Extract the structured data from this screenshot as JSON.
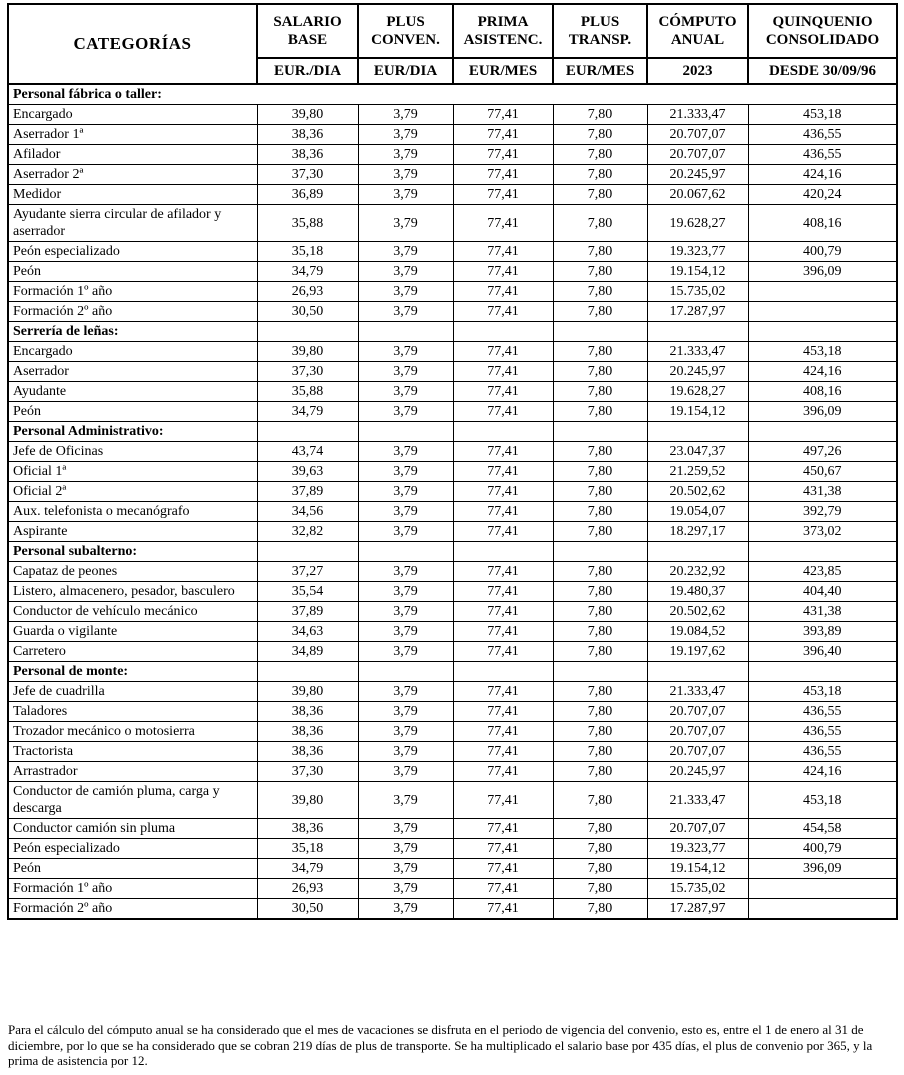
{
  "table": {
    "header": {
      "columns": [
        {
          "label": "CATEGORÍAS",
          "unit": ""
        },
        {
          "label": "SALARIO BASE",
          "unit": "EUR./DIA"
        },
        {
          "label": "PLUS CONVEN.",
          "unit": "EUR/DIA"
        },
        {
          "label": "PRIMA ASISTENC.",
          "unit": "EUR/MES"
        },
        {
          "label": "PLUS TRANSP.",
          "unit": "EUR/MES"
        },
        {
          "label": "CÓMPUTO ANUAL",
          "unit": "2023"
        },
        {
          "label": "QUINQUENIO CONSOLIDADO",
          "unit": "DESDE 30/09/96"
        }
      ]
    },
    "sections": [
      {
        "title": "Personal fábrica o taller:",
        "span_all": true,
        "rows": [
          {
            "categoria": "Encargado",
            "valores": [
              "39,80",
              "3,79",
              "77,41",
              "7,80",
              "21.333,47",
              "453,18"
            ]
          },
          {
            "categoria": "Aserrador 1ª",
            "valores": [
              "38,36",
              "3,79",
              "77,41",
              "7,80",
              "20.707,07",
              "436,55"
            ]
          },
          {
            "categoria": "Afilador",
            "valores": [
              "38,36",
              "3,79",
              "77,41",
              "7,80",
              "20.707,07",
              "436,55"
            ]
          },
          {
            "categoria": "Aserrador 2ª",
            "valores": [
              "37,30",
              "3,79",
              "77,41",
              "7,80",
              "20.245,97",
              "424,16"
            ]
          },
          {
            "categoria": "Medidor",
            "valores": [
              "36,89",
              "3,79",
              "77,41",
              "7,80",
              "20.067,62",
              "420,24"
            ]
          },
          {
            "categoria": "Ayudante sierra circular de afilador y aserrador",
            "valores": [
              "35,88",
              "3,79",
              "77,41",
              "7,80",
              "19.628,27",
              "408,16"
            ]
          },
          {
            "categoria": "Peón especializado",
            "valores": [
              "35,18",
              "3,79",
              "77,41",
              "7,80",
              "19.323,77",
              "400,79"
            ]
          },
          {
            "categoria": "Peón",
            "valores": [
              "34,79",
              "3,79",
              "77,41",
              "7,80",
              "19.154,12",
              "396,09"
            ]
          },
          {
            "categoria": "Formación 1º año",
            "valores": [
              "26,93",
              "3,79",
              "77,41",
              "7,80",
              "15.735,02",
              ""
            ]
          },
          {
            "categoria": "Formación 2º año",
            "valores": [
              "30,50",
              "3,79",
              "77,41",
              "7,80",
              "17.287,97",
              ""
            ]
          }
        ]
      },
      {
        "title": "Serrería de leñas:",
        "span_all": false,
        "rows": [
          {
            "categoria": "Encargado",
            "valores": [
              "39,80",
              "3,79",
              "77,41",
              "7,80",
              "21.333,47",
              "453,18"
            ]
          },
          {
            "categoria": "Aserrador",
            "valores": [
              "37,30",
              "3,79",
              "77,41",
              "7,80",
              "20.245,97",
              "424,16"
            ]
          },
          {
            "categoria": "Ayudante",
            "valores": [
              "35,88",
              "3,79",
              "77,41",
              "7,80",
              "19.628,27",
              "408,16"
            ]
          },
          {
            "categoria": "Peón",
            "valores": [
              "34,79",
              "3,79",
              "77,41",
              "7,80",
              "19.154,12",
              "396,09"
            ]
          }
        ]
      },
      {
        "title": "Personal Administrativo:",
        "span_all": false,
        "rows": [
          {
            "categoria": "Jefe de Oficinas",
            "valores": [
              "43,74",
              "3,79",
              "77,41",
              "7,80",
              "23.047,37",
              "497,26"
            ]
          },
          {
            "categoria": "Oficial 1ª",
            "valores": [
              "39,63",
              "3,79",
              "77,41",
              "7,80",
              "21.259,52",
              "450,67"
            ]
          },
          {
            "categoria": "Oficial 2ª",
            "valores": [
              "37,89",
              "3,79",
              "77,41",
              "7,80",
              "20.502,62",
              "431,38"
            ]
          },
          {
            "categoria": "Aux. telefonista o mecanógrafo",
            "valores": [
              "34,56",
              "3,79",
              "77,41",
              "7,80",
              "19.054,07",
              "392,79"
            ]
          },
          {
            "categoria": "Aspirante",
            "valores": [
              "32,82",
              "3,79",
              "77,41",
              "7,80",
              "18.297,17",
              "373,02"
            ]
          }
        ]
      },
      {
        "title": "Personal subalterno:",
        "span_all": false,
        "rows": [
          {
            "categoria": "Capataz de peones",
            "valores": [
              "37,27",
              "3,79",
              "77,41",
              "7,80",
              "20.232,92",
              "423,85"
            ]
          },
          {
            "categoria": "Listero, almacenero, pesador, basculero",
            "valores": [
              "35,54",
              "3,79",
              "77,41",
              "7,80",
              "19.480,37",
              "404,40"
            ]
          },
          {
            "categoria": "Conductor de vehículo mecánico",
            "valores": [
              "37,89",
              "3,79",
              "77,41",
              "7,80",
              "20.502,62",
              "431,38"
            ]
          },
          {
            "categoria": "Guarda o vigilante",
            "valores": [
              "34,63",
              "3,79",
              "77,41",
              "7,80",
              "19.084,52",
              "393,89"
            ]
          },
          {
            "categoria": "Carretero",
            "valores": [
              "34,89",
              "3,79",
              "77,41",
              "7,80",
              "19.197,62",
              "396,40"
            ]
          }
        ]
      },
      {
        "title": "Personal de monte:",
        "span_all": false,
        "rows": [
          {
            "categoria": "Jefe de cuadrilla",
            "valores": [
              "39,80",
              "3,79",
              "77,41",
              "7,80",
              "21.333,47",
              "453,18"
            ]
          },
          {
            "categoria": "Taladores",
            "valores": [
              "38,36",
              "3,79",
              "77,41",
              "7,80",
              "20.707,07",
              "436,55"
            ]
          },
          {
            "categoria": "Trozador mecánico o motosierra",
            "valores": [
              "38,36",
              "3,79",
              "77,41",
              "7,80",
              "20.707,07",
              "436,55"
            ]
          },
          {
            "categoria": "Tractorista",
            "valores": [
              "38,36",
              "3,79",
              "77,41",
              "7,80",
              "20.707,07",
              "436,55"
            ]
          },
          {
            "categoria": "Arrastrador",
            "valores": [
              "37,30",
              "3,79",
              "77,41",
              "7,80",
              "20.245,97",
              "424,16"
            ]
          },
          {
            "categoria": "Conductor de camión pluma, carga y descarga",
            "valores": [
              "39,80",
              "3,79",
              "77,41",
              "7,80",
              "21.333,47",
              "453,18"
            ]
          },
          {
            "categoria": "Conductor camión sin pluma",
            "valores": [
              "38,36",
              "3,79",
              "77,41",
              "7,80",
              "20.707,07",
              "454,58"
            ]
          },
          {
            "categoria": "Peón especializado",
            "valores": [
              "35,18",
              "3,79",
              "77,41",
              "7,80",
              "19.323,77",
              "400,79"
            ]
          },
          {
            "categoria": "Peón",
            "valores": [
              "34,79",
              "3,79",
              "77,41",
              "7,80",
              "19.154,12",
              "396,09"
            ]
          },
          {
            "categoria": "Formación 1º año",
            "valores": [
              "26,93",
              "3,79",
              "77,41",
              "7,80",
              "15.735,02",
              ""
            ]
          },
          {
            "categoria": "Formación 2º año",
            "valores": [
              "30,50",
              "3,79",
              "77,41",
              "7,80",
              "17.287,97",
              ""
            ]
          }
        ]
      }
    ]
  },
  "note": "Para el cálculo del cómputo anual se ha considerado que el mes de vacaciones se disfruta en el periodo de vigencia del convenio, esto es, entre el 1 de enero al 31 de diciembre, por lo que se ha considerado que se cobran 219 días de plus de transporte. Se ha multiplicado el salario base por 435 días, el plus de convenio por 365,  y la prima de asistencia por 12.",
  "colors": {
    "text": "#000000",
    "border": "#000000",
    "background": "#ffffff"
  }
}
